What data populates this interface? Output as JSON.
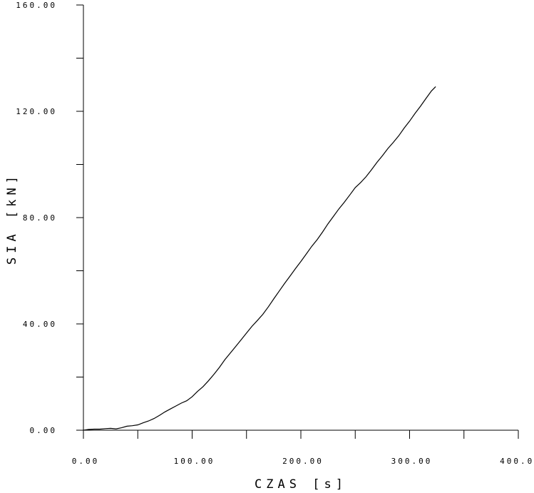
{
  "chart_data": {
    "type": "line",
    "title": "",
    "xlabel": "CZAS [s]",
    "ylabel": "SIA [kN]",
    "xlim": [
      0,
      400
    ],
    "ylim": [
      0,
      160
    ],
    "x_ticks": [
      0,
      100,
      200,
      300,
      400
    ],
    "x_tick_labels": [
      "0.00",
      "100.00",
      "200.00",
      "300.00",
      "400.00"
    ],
    "x_minor_ticks": [
      50,
      150,
      250,
      350
    ],
    "y_ticks": [
      0,
      40,
      80,
      120,
      160
    ],
    "y_tick_labels": [
      "0.00",
      "40.00",
      "80.00",
      "120.00",
      "160.00"
    ],
    "y_minor_ticks": [
      20,
      60,
      100,
      140
    ],
    "grid": false,
    "series": [
      {
        "color": "#000000",
        "x": [
          0,
          5,
          10,
          15,
          20,
          25,
          30,
          35,
          40,
          45,
          50,
          55,
          60,
          65,
          70,
          75,
          80,
          85,
          90,
          95,
          100,
          105,
          110,
          115,
          120,
          125,
          130,
          135,
          140,
          145,
          150,
          155,
          160,
          165,
          170,
          175,
          180,
          185,
          190,
          195,
          200,
          205,
          210,
          215,
          220,
          225,
          230,
          235,
          240,
          245,
          250,
          255,
          260,
          265,
          270,
          275,
          280,
          285,
          290,
          295,
          300,
          305,
          310,
          315,
          320,
          324
        ],
        "values": [
          0.0,
          0.3,
          0.4,
          0.4,
          0.6,
          0.7,
          0.5,
          0.9,
          1.5,
          1.7,
          2.0,
          2.8,
          3.5,
          4.4,
          5.6,
          6.9,
          8.0,
          9.1,
          10.2,
          11.1,
          12.6,
          14.6,
          16.4,
          18.6,
          21.0,
          23.6,
          26.5,
          29.0,
          31.5,
          34.0,
          36.6,
          39.1,
          41.3,
          43.6,
          46.4,
          49.4,
          52.3,
          55.2,
          58.0,
          60.8,
          63.5,
          66.3,
          69.2,
          71.7,
          74.6,
          77.7,
          80.5,
          83.3,
          85.8,
          88.5,
          91.3,
          93.2,
          95.4,
          98.0,
          100.8,
          103.3,
          106.0,
          108.3,
          110.8,
          113.7,
          116.3,
          119.2,
          121.9,
          124.8,
          127.6,
          129.3
        ]
      }
    ]
  }
}
